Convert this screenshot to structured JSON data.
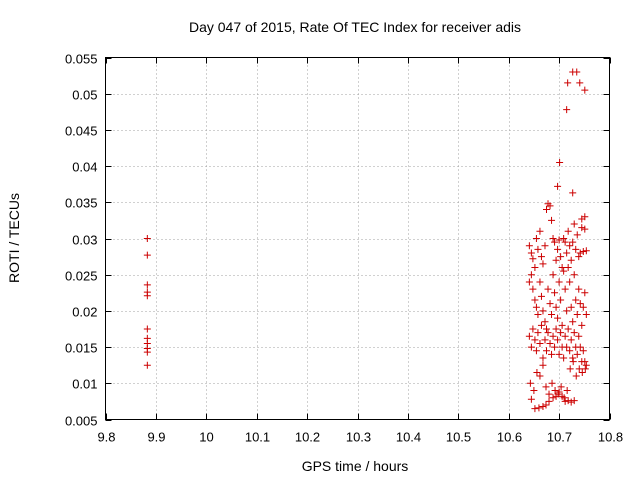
{
  "chart_data": {
    "type": "scatter",
    "title": "Day 047 of 2015, Rate Of TEC Index for receiver adis",
    "xlabel": "GPS time / hours",
    "ylabel": "ROTI / TECUs",
    "xlim": [
      9.8,
      10.8
    ],
    "ylim": [
      0.005,
      0.055
    ],
    "xticks": [
      9.8,
      9.9,
      10.0,
      10.1,
      10.2,
      10.3,
      10.4,
      10.5,
      10.6,
      10.7,
      10.8
    ],
    "xtick_labels": [
      "9.8",
      "9.9",
      "10",
      "10.1",
      "10.2",
      "10.3",
      "10.4",
      "10.5",
      "10.6",
      "10.7",
      "10.8"
    ],
    "yticks": [
      0.005,
      0.01,
      0.015,
      0.02,
      0.025,
      0.03,
      0.035,
      0.04,
      0.045,
      0.05,
      0.055
    ],
    "ytick_labels": [
      "0.005",
      "0.01",
      "0.015",
      "0.02",
      "0.025",
      "0.03",
      "0.035",
      "0.04",
      "0.045",
      "0.05",
      "0.055"
    ],
    "grid": true,
    "marker": "+",
    "color": "#cc0000",
    "series": [
      {
        "name": "ROTI",
        "points": [
          [
            9.883,
            0.03
          ],
          [
            9.883,
            0.0277
          ],
          [
            9.883,
            0.0236
          ],
          [
            9.883,
            0.0226
          ],
          [
            9.883,
            0.0221
          ],
          [
            9.883,
            0.0175
          ],
          [
            9.883,
            0.0162
          ],
          [
            9.883,
            0.0155
          ],
          [
            9.883,
            0.0148
          ],
          [
            9.883,
            0.0143
          ],
          [
            9.883,
            0.0125
          ],
          [
            10.727,
            0.053
          ],
          [
            10.735,
            0.053
          ],
          [
            10.741,
            0.0515
          ],
          [
            10.717,
            0.0515
          ],
          [
            10.751,
            0.0505
          ],
          [
            10.715,
            0.0478
          ],
          [
            10.701,
            0.0405
          ],
          [
            10.697,
            0.0372
          ],
          [
            10.727,
            0.0363
          ],
          [
            10.751,
            0.033
          ],
          [
            10.745,
            0.0327
          ],
          [
            10.641,
            0.029
          ],
          [
            10.645,
            0.028
          ],
          [
            10.648,
            0.0272
          ],
          [
            10.652,
            0.026
          ],
          [
            10.655,
            0.03
          ],
          [
            10.658,
            0.0285
          ],
          [
            10.662,
            0.031
          ],
          [
            10.665,
            0.0275
          ],
          [
            10.668,
            0.0265
          ],
          [
            10.672,
            0.029
          ],
          [
            10.675,
            0.034
          ],
          [
            10.678,
            0.0348
          ],
          [
            10.682,
            0.0345
          ],
          [
            10.685,
            0.0325
          ],
          [
            10.688,
            0.03
          ],
          [
            10.691,
            0.0295
          ],
          [
            10.694,
            0.027
          ],
          [
            10.697,
            0.0285
          ],
          [
            10.7,
            0.0298
          ],
          [
            10.703,
            0.0275
          ],
          [
            10.706,
            0.026
          ],
          [
            10.709,
            0.03
          ],
          [
            10.712,
            0.0295
          ],
          [
            10.715,
            0.028
          ],
          [
            10.718,
            0.031
          ],
          [
            10.721,
            0.029
          ],
          [
            10.724,
            0.027
          ],
          [
            10.727,
            0.0295
          ],
          [
            10.73,
            0.032
          ],
          [
            10.733,
            0.0285
          ],
          [
            10.736,
            0.0305
          ],
          [
            10.739,
            0.0275
          ],
          [
            10.742,
            0.028
          ],
          [
            10.745,
            0.0315
          ],
          [
            10.748,
            0.0282
          ],
          [
            10.751,
            0.0313
          ],
          [
            10.754,
            0.0283
          ],
          [
            10.641,
            0.024
          ],
          [
            10.645,
            0.025
          ],
          [
            10.648,
            0.023
          ],
          [
            10.652,
            0.0215
          ],
          [
            10.655,
            0.0205
          ],
          [
            10.658,
            0.0195
          ],
          [
            10.662,
            0.024
          ],
          [
            10.665,
            0.022
          ],
          [
            10.668,
            0.02
          ],
          [
            10.672,
            0.0185
          ],
          [
            10.675,
            0.0175
          ],
          [
            10.678,
            0.023
          ],
          [
            10.682,
            0.021
          ],
          [
            10.685,
            0.0195
          ],
          [
            10.688,
            0.025
          ],
          [
            10.691,
            0.0225
          ],
          [
            10.694,
            0.0205
          ],
          [
            10.697,
            0.019
          ],
          [
            10.7,
            0.024
          ],
          [
            10.703,
            0.0215
          ],
          [
            10.706,
            0.018
          ],
          [
            10.709,
            0.0255
          ],
          [
            10.712,
            0.023
          ],
          [
            10.715,
            0.02
          ],
          [
            10.718,
            0.026
          ],
          [
            10.721,
            0.024
          ],
          [
            10.724,
            0.0205
          ],
          [
            10.727,
            0.0185
          ],
          [
            10.73,
            0.025
          ],
          [
            10.733,
            0.0215
          ],
          [
            10.736,
            0.0195
          ],
          [
            10.739,
            0.023
          ],
          [
            10.742,
            0.021
          ],
          [
            10.745,
            0.018
          ],
          [
            10.748,
            0.0205
          ],
          [
            10.751,
            0.0225
          ],
          [
            10.754,
            0.0195
          ],
          [
            10.641,
            0.0165
          ],
          [
            10.645,
            0.015
          ],
          [
            10.648,
            0.0175
          ],
          [
            10.652,
            0.016
          ],
          [
            10.655,
            0.0145
          ],
          [
            10.658,
            0.017
          ],
          [
            10.662,
            0.0155
          ],
          [
            10.665,
            0.018
          ],
          [
            10.668,
            0.0135
          ],
          [
            10.672,
            0.016
          ],
          [
            10.675,
            0.0145
          ],
          [
            10.678,
            0.017
          ],
          [
            10.682,
            0.0155
          ],
          [
            10.685,
            0.014
          ],
          [
            10.688,
            0.0165
          ],
          [
            10.691,
            0.015
          ],
          [
            10.694,
            0.0175
          ],
          [
            10.697,
            0.016
          ],
          [
            10.7,
            0.014
          ],
          [
            10.703,
            0.017
          ],
          [
            10.706,
            0.015
          ],
          [
            10.709,
            0.0135
          ],
          [
            10.712,
            0.0165
          ],
          [
            10.715,
            0.015
          ],
          [
            10.718,
            0.0175
          ],
          [
            10.721,
            0.0145
          ],
          [
            10.724,
            0.016
          ],
          [
            10.727,
            0.0135
          ],
          [
            10.73,
            0.017
          ],
          [
            10.733,
            0.015
          ],
          [
            10.736,
            0.014
          ],
          [
            10.739,
            0.0165
          ],
          [
            10.742,
            0.015
          ],
          [
            10.745,
            0.013
          ],
          [
            10.748,
            0.0145
          ],
          [
            10.751,
            0.013
          ],
          [
            10.754,
            0.0125
          ],
          [
            10.643,
            0.01
          ],
          [
            10.65,
            0.009
          ],
          [
            10.656,
            0.0115
          ],
          [
            10.662,
            0.011
          ],
          [
            10.668,
            0.0125
          ],
          [
            10.674,
            0.0095
          ],
          [
            10.68,
            0.0085
          ],
          [
            10.686,
            0.01
          ],
          [
            10.692,
            0.009
          ],
          [
            10.698,
            0.0085
          ],
          [
            10.704,
            0.0095
          ],
          [
            10.71,
            0.008
          ],
          [
            10.716,
            0.009
          ],
          [
            10.722,
            0.012
          ],
          [
            10.728,
            0.013
          ],
          [
            10.734,
            0.011
          ],
          [
            10.74,
            0.012
          ],
          [
            10.746,
            0.0115
          ],
          [
            10.752,
            0.012
          ],
          [
            10.645,
            0.0078
          ],
          [
            10.652,
            0.0065
          ],
          [
            10.66,
            0.0066
          ],
          [
            10.668,
            0.0068
          ],
          [
            10.674,
            0.007
          ],
          [
            10.68,
            0.0075
          ],
          [
            10.688,
            0.008
          ],
          [
            10.694,
            0.0082
          ],
          [
            10.7,
            0.0088
          ],
          [
            10.706,
            0.0082
          ],
          [
            10.712,
            0.0075
          ],
          [
            10.718,
            0.0076
          ],
          [
            10.724,
            0.0074
          ],
          [
            10.73,
            0.0076
          ]
        ]
      }
    ]
  }
}
